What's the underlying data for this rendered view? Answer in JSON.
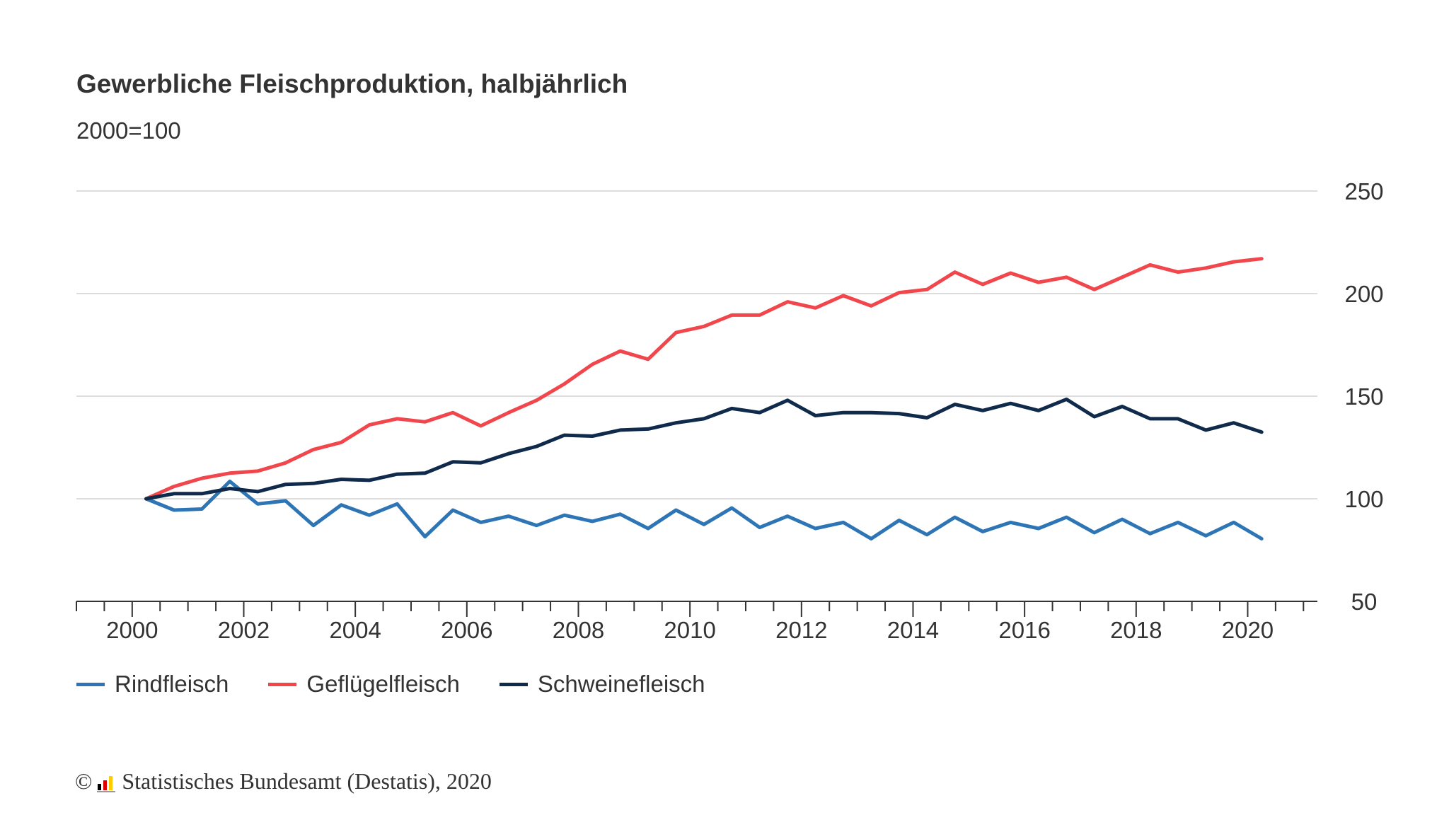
{
  "chart_data": {
    "type": "line",
    "title": "Gewerbliche Fleischproduktion, halbjährlich",
    "subtitle": "2000=100",
    "xlabel": "",
    "ylabel": "",
    "x_ticks": [
      "2000",
      "2002",
      "2004",
      "2006",
      "2008",
      "2010",
      "2012",
      "2014",
      "2016",
      "2018",
      "2020"
    ],
    "y_ticks": [
      "50",
      "100",
      "150",
      "200",
      "250"
    ],
    "ylim": [
      50,
      250
    ],
    "xlim": [
      1999.0,
      2021.25
    ],
    "grid": "horizontal",
    "legend_position": "bottom-left",
    "x": [
      2000.25,
      2000.75,
      2001.25,
      2001.75,
      2002.25,
      2002.75,
      2003.25,
      2003.75,
      2004.25,
      2004.75,
      2005.25,
      2005.75,
      2006.25,
      2006.75,
      2007.25,
      2007.75,
      2008.25,
      2008.75,
      2009.25,
      2009.75,
      2010.25,
      2010.75,
      2011.25,
      2011.75,
      2012.25,
      2012.75,
      2013.25,
      2013.75,
      2014.25,
      2014.75,
      2015.25,
      2015.75,
      2016.25,
      2016.75,
      2017.25,
      2017.75,
      2018.25,
      2018.75,
      2019.25,
      2019.75,
      2020.25
    ],
    "series": [
      {
        "name": "Rindfleisch",
        "color": "#2e75b6",
        "values": [
          100,
          94.5,
          95,
          108.5,
          97.5,
          99,
          87,
          97,
          92,
          97.5,
          81.5,
          94.5,
          88.5,
          91.5,
          87,
          92,
          89,
          92.5,
          85.5,
          94.5,
          87.5,
          95.5,
          86,
          91.5,
          85.5,
          88.5,
          80.5,
          89.5,
          82.5,
          91,
          84,
          88.5,
          85.5,
          91,
          83.5,
          90,
          83,
          88.5,
          82,
          88.5,
          80.5
        ]
      },
      {
        "name": "Geflügelfleisch",
        "color": "#f0464c",
        "values": [
          100,
          106,
          110,
          112.5,
          113.5,
          117.5,
          124,
          127.5,
          136,
          139,
          137.5,
          142,
          135.5,
          142,
          148,
          156,
          165.5,
          172,
          168,
          181,
          184,
          189.5,
          189.5,
          196,
          193,
          199,
          194,
          200.5,
          202,
          210.5,
          204.5,
          210,
          205.5,
          208,
          202,
          208,
          214,
          210.5,
          212.5,
          215.5,
          217
        ]
      },
      {
        "name": "Schweinefleisch",
        "color": "#0f2a4a",
        "values": [
          100,
          102.5,
          102.5,
          105,
          103.5,
          107,
          107.5,
          109.5,
          109,
          112,
          112.5,
          118,
          117.5,
          122,
          125.5,
          131,
          130.5,
          133.5,
          134,
          137,
          139,
          144,
          142,
          148,
          140.5,
          142,
          142,
          141.5,
          139.5,
          146,
          143,
          146.5,
          143,
          148.5,
          140,
          145,
          139,
          139,
          133.5,
          137,
          132.5
        ]
      }
    ]
  },
  "source": {
    "copyright_symbol": "©",
    "text": "Statistisches Bundesamt (Destatis), 2020",
    "logo_colors": [
      "#000000",
      "#dd0000",
      "#ffcc00"
    ]
  },
  "colors": {
    "grid": "#dddddd",
    "axis": "#333333",
    "text": "#333333"
  }
}
